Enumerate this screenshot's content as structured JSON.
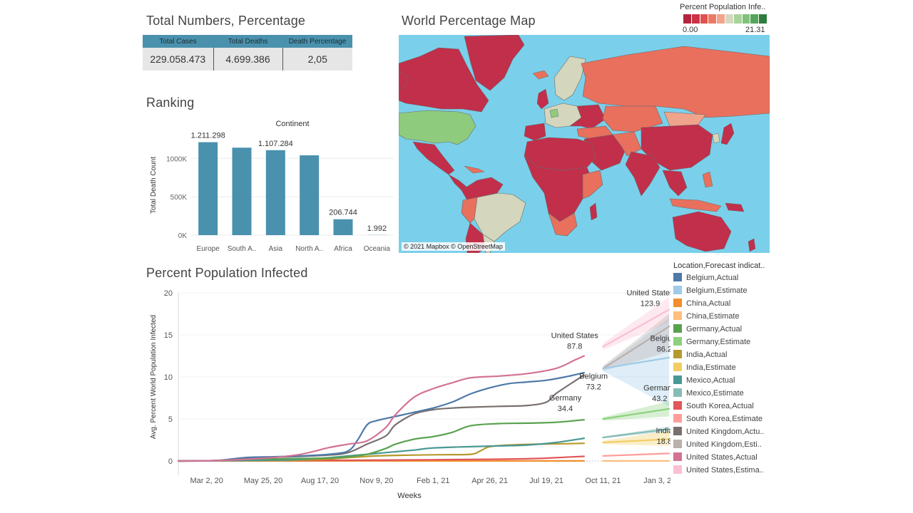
{
  "kpi": {
    "title": "Total Numbers, Percentage",
    "headers": [
      "Total Cases",
      "Total Deaths",
      "Death Percentage"
    ],
    "values": [
      "229.058.473",
      "4.699.386",
      "2,05"
    ]
  },
  "map": {
    "title": "World Percentage Map",
    "legend_title": "Percent Population Infe..",
    "legend_min": "0.00",
    "legend_max": "21.31",
    "legend_colors": [
      "#b5243f",
      "#cc3344",
      "#e0524f",
      "#ec7963",
      "#f1a48c",
      "#d6d9c2",
      "#a8d49a",
      "#7fc27a",
      "#56a55a",
      "#2f7d3e"
    ],
    "attribution": "© 2021 Mapbox © OpenStreetMap",
    "colors": {
      "ocean": "#7ad0ea",
      "high": "#c12f4b",
      "mid": "#e8705d",
      "low": "#d4d6bd",
      "green": "#8fcb7d"
    }
  },
  "ranking": {
    "title": "Ranking"
  },
  "line": {
    "title": "Percent Population Infected",
    "legend_title": "Location,Forecast indicat..",
    "legend_items": [
      {
        "label": "Belgium,Actual",
        "color": "#4e79a7"
      },
      {
        "label": "Belgium,Estimate",
        "color": "#a0cbe8"
      },
      {
        "label": "China,Actual",
        "color": "#f28e2b"
      },
      {
        "label": "China,Estimate",
        "color": "#ffbe7d"
      },
      {
        "label": "Germany,Actual",
        "color": "#59a14f"
      },
      {
        "label": "Germany,Estimate",
        "color": "#8cd17d"
      },
      {
        "label": "India,Actual",
        "color": "#b6992d"
      },
      {
        "label": "India,Estimate",
        "color": "#f1ce63"
      },
      {
        "label": "Mexico,Actual",
        "color": "#499894"
      },
      {
        "label": "Mexico,Estimate",
        "color": "#86bcb6"
      },
      {
        "label": "South Korea,Actual",
        "color": "#e15759"
      },
      {
        "label": "South Korea,Estimate",
        "color": "#ff9d9a"
      },
      {
        "label": "United Kingdom,Actu..",
        "color": "#79706e"
      },
      {
        "label": "United Kingdom,Esti..",
        "color": "#bab0ac"
      },
      {
        "label": "United States,Actual",
        "color": "#d37295"
      },
      {
        "label": "United States,Estima..",
        "color": "#fabfd2"
      }
    ]
  },
  "chart_data": [
    {
      "type": "bar",
      "header": "Continent",
      "categories": [
        "Europe",
        "South A..",
        "Asia",
        "North A..",
        "Africa",
        "Oceania"
      ],
      "values": [
        1211298,
        1140000,
        1107284,
        1040000,
        206744,
        1992
      ],
      "data_labels": [
        "1.211.298",
        "",
        "1.107.284",
        "",
        "206.744",
        "1.992"
      ],
      "ylabel": "Total Death Count",
      "ylim": [
        0,
        1300000
      ],
      "yticks": [
        0,
        500000,
        1000000
      ],
      "ytick_labels": [
        "0K",
        "500K",
        "1000K"
      ],
      "color": "#4a91ad",
      "grid": true
    },
    {
      "type": "line",
      "xlabel": "Weeks",
      "ylabel": "Avg. Percent World Population Infected",
      "ylim": [
        0,
        20
      ],
      "yticks": [
        0,
        5,
        10,
        15,
        20
      ],
      "xtick_labels": [
        "Mar 2, 20",
        "May 25, 20",
        "Aug 17, 20",
        "Nov 9, 20",
        "Feb 1, 21",
        "Apr 26, 21",
        "Jul 19, 21",
        "Oct 11, 21",
        "Jan 3, 22"
      ],
      "x_week_ticks": [
        0,
        12,
        24,
        36,
        48,
        60,
        72,
        84,
        96
      ],
      "x_range_weeks": [
        -6,
        98
      ],
      "forecast_start_week": 84,
      "series": [
        {
          "name": "United States,Actual",
          "color": "#d37295",
          "x": [
            -6,
            2,
            8,
            14,
            20,
            26,
            30,
            34,
            38,
            40,
            44,
            48,
            52,
            56,
            62,
            68,
            74,
            78,
            80
          ],
          "y": [
            0,
            0.05,
            0.2,
            0.4,
            0.8,
            1.6,
            2.0,
            2.4,
            4.0,
            5.5,
            7.6,
            8.6,
            9.3,
            9.9,
            10.1,
            10.4,
            11.0,
            12.0,
            12.5
          ]
        },
        {
          "name": "United States,Estimate",
          "color": "#fabfd2",
          "x": [
            84,
            98
          ],
          "y": [
            13.6,
            18.0
          ],
          "band_hi": [
            14.0,
            19.5
          ],
          "band_lo": [
            13.2,
            16.5
          ]
        },
        {
          "name": "Belgium,Actual",
          "color": "#4e79a7",
          "x": [
            -6,
            2,
            8,
            14,
            20,
            26,
            30,
            32,
            34,
            36,
            40,
            44,
            48,
            52,
            56,
            60,
            64,
            68,
            72,
            76,
            80
          ],
          "y": [
            0,
            0.05,
            0.4,
            0.5,
            0.6,
            0.8,
            1.2,
            2.5,
            4.3,
            4.8,
            5.3,
            5.8,
            6.3,
            7.0,
            8.0,
            8.7,
            9.2,
            9.4,
            9.6,
            10.0,
            10.5
          ]
        },
        {
          "name": "Belgium,Estimate",
          "color": "#a0cbe8",
          "x": [
            84,
            98
          ],
          "y": [
            11.0,
            12.3
          ],
          "band_hi": [
            11.2,
            17.0
          ],
          "band_lo": [
            10.7,
            6.5
          ]
        },
        {
          "name": "United Kingdom,Actual",
          "color": "#79706e",
          "x": [
            -6,
            2,
            8,
            14,
            20,
            26,
            30,
            34,
            38,
            40,
            44,
            48,
            52,
            56,
            62,
            68,
            72,
            74,
            78,
            80
          ],
          "y": [
            0,
            0.05,
            0.3,
            0.45,
            0.55,
            0.7,
            1.0,
            2.0,
            3.0,
            4.3,
            5.6,
            6.1,
            6.3,
            6.4,
            6.5,
            6.6,
            7.0,
            8.0,
            9.5,
            10.2
          ]
        },
        {
          "name": "United Kingdom,Estimate",
          "color": "#bab0ac",
          "x": [
            84,
            98
          ],
          "y": [
            11.0,
            16.0
          ],
          "band_hi": [
            11.3,
            17.5
          ],
          "band_lo": [
            10.7,
            13.0
          ]
        },
        {
          "name": "Germany,Actual",
          "color": "#59a14f",
          "x": [
            -6,
            2,
            8,
            14,
            20,
            26,
            30,
            34,
            38,
            40,
            44,
            48,
            52,
            56,
            62,
            68,
            74,
            80
          ],
          "y": [
            0,
            0.05,
            0.2,
            0.25,
            0.3,
            0.35,
            0.5,
            0.8,
            1.5,
            2.0,
            2.6,
            2.9,
            3.4,
            4.2,
            4.45,
            4.5,
            4.6,
            4.9
          ]
        },
        {
          "name": "Germany,Estimate",
          "color": "#8cd17d",
          "x": [
            84,
            98
          ],
          "y": [
            5.0,
            6.2
          ],
          "band_hi": [
            5.2,
            7.1
          ],
          "band_lo": [
            4.8,
            5.3
          ]
        },
        {
          "name": "Mexico,Actual",
          "color": "#499894",
          "x": [
            -6,
            14,
            20,
            26,
            30,
            34,
            38,
            44,
            48,
            56,
            62,
            68,
            74,
            80
          ],
          "y": [
            0,
            0.1,
            0.2,
            0.4,
            0.6,
            0.8,
            1.0,
            1.3,
            1.55,
            1.7,
            1.8,
            1.9,
            2.2,
            2.7
          ]
        },
        {
          "name": "Mexico,Estimate",
          "color": "#86bcb6",
          "x": [
            84,
            98
          ],
          "y": [
            2.8,
            3.8
          ],
          "band_hi": [
            2.9,
            4.1
          ],
          "band_lo": [
            2.7,
            3.5
          ]
        },
        {
          "name": "India,Actual",
          "color": "#b6992d",
          "x": [
            -6,
            14,
            20,
            26,
            30,
            36,
            44,
            50,
            56,
            58,
            60,
            64,
            70,
            76,
            80
          ],
          "y": [
            0,
            0.05,
            0.1,
            0.25,
            0.4,
            0.6,
            0.7,
            0.75,
            0.8,
            1.2,
            1.7,
            1.9,
            2.0,
            2.05,
            2.1
          ]
        },
        {
          "name": "India,Estimate",
          "color": "#f1ce63",
          "x": [
            84,
            98
          ],
          "y": [
            2.2,
            2.6
          ],
          "band_hi": [
            2.4,
            3.6
          ],
          "band_lo": [
            2.0,
            1.8
          ]
        },
        {
          "name": "South Korea,Actual",
          "color": "#e15759",
          "x": [
            -6,
            20,
            40,
            60,
            70,
            76,
            80
          ],
          "y": [
            0,
            0.05,
            0.12,
            0.2,
            0.3,
            0.45,
            0.55
          ]
        },
        {
          "name": "South Korea,Estimate",
          "color": "#ff9d9a",
          "x": [
            84,
            98
          ],
          "y": [
            0.6,
            0.9
          ]
        },
        {
          "name": "China,Actual",
          "color": "#f28e2b",
          "x": [
            -6,
            80
          ],
          "y": [
            0.005,
            0.007
          ]
        },
        {
          "name": "China,Estimate",
          "color": "#ffbe7d",
          "x": [
            84,
            98
          ],
          "y": [
            0.007,
            0.008
          ]
        }
      ],
      "annotations": [
        {
          "text": "United States",
          "sub": "87.8",
          "x": 78,
          "y": 14.6
        },
        {
          "text": "United States",
          "sub": "123.9",
          "x": 94,
          "y": 19.7
        },
        {
          "text": "Belgium",
          "sub": "86.2",
          "x": 97,
          "y": 14.3
        },
        {
          "text": "Belgium",
          "sub": "73.2",
          "x": 82,
          "y": 9.8
        },
        {
          "text": "Germany",
          "sub": "34.4",
          "x": 76,
          "y": 7.2
        },
        {
          "text": "Germany",
          "sub": "43.2",
          "x": 96,
          "y": 8.4
        },
        {
          "text": "India",
          "sub": "18.8",
          "x": 97,
          "y": 3.3
        }
      ]
    }
  ]
}
